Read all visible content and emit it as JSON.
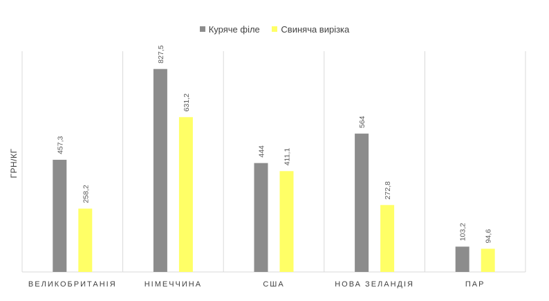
{
  "chart_data": {
    "type": "bar",
    "categories": [
      "ВЕЛИКОБРИТАНІЯ",
      "НІМЕЧЧИНА",
      "США",
      "НОВА ЗЕЛАНДІЯ",
      "ПАР"
    ],
    "series": [
      {
        "name": "Куряче філе",
        "values": [
          457.3,
          827.5,
          444,
          564,
          103.2
        ],
        "labels": [
          "457,3",
          "827,5",
          "444",
          "564",
          "103,2"
        ],
        "color": "#8c8c8c"
      },
      {
        "name": "Свиняча вирізка",
        "values": [
          258.2,
          631.2,
          411.1,
          272.8,
          94.6
        ],
        "labels": [
          "258,2",
          "631,2",
          "411,1",
          "272,8",
          "94,6"
        ],
        "color": "#ffff66"
      }
    ],
    "ylabel": "ГРН/КГ",
    "ylim": [
      0,
      900
    ],
    "legend_position": "top-center",
    "grid": "vertical category separators"
  }
}
